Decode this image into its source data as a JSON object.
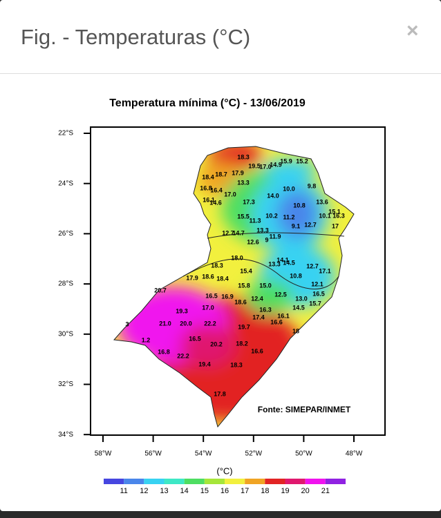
{
  "modal": {
    "title": "Fig. - Temperaturas (°C)",
    "close": "×"
  },
  "map": {
    "title": "Temperatura mínima  (°C) - 13/06/2019",
    "lat_ticks": [
      "22°S",
      "24°S",
      "26°S",
      "28°S",
      "30°S",
      "32°S",
      "34°S"
    ],
    "lon_ticks": [
      "58°W",
      "56°W",
      "54°W",
      "52°W",
      "50°W",
      "48°W"
    ],
    "source": "Fonte: SIMEPAR/INMET",
    "stations": [
      "18.3",
      "18.7",
      "17.9",
      "19.5",
      "17.0",
      "14.9",
      "15.9",
      "15.2",
      "18.4",
      "13.3",
      "16.8",
      "16.4",
      "17.0",
      "14.0",
      "10.0",
      "9.8",
      "16.1",
      "14.6",
      "17.3",
      "10.8",
      "13.6",
      "15.5",
      "10.2",
      "11.2",
      "15.1",
      "11.3",
      "10.1",
      "16.3",
      "9.1",
      "12.7",
      "17",
      "12.7",
      "14.7",
      "13.3",
      "12.6",
      "11.9",
      "9",
      "18.0",
      "14.1",
      "13.3",
      "14.5",
      "12.7",
      "18.3",
      "15.4",
      "10.8",
      "17.1",
      "17.9",
      "18.6",
      "18.4",
      "15.8",
      "15.0",
      "12.1",
      "12.5",
      "16.5",
      "20.7",
      "16.5",
      "16.9",
      "12.4",
      "18.6",
      "13.0",
      "15.7",
      "19.3",
      "17.0",
      "16.3",
      "14.5",
      "17.4",
      "16.1",
      "16.6",
      "21.0",
      "20.0",
      "22.2",
      "19.7",
      "18",
      "16.5",
      "20.2",
      "18.2",
      "16.6",
      "16.8",
      "22.2",
      "19.4",
      "18.3",
      "17.8",
      "1.2",
      "3"
    ]
  },
  "colorbar": {
    "unit": "(°C)",
    "ticks": [
      11,
      12,
      13,
      14,
      15,
      16,
      17,
      18,
      19,
      20,
      21
    ],
    "colors": [
      "#4646e0",
      "#4a86ea",
      "#38d2f2",
      "#3ee8c6",
      "#4ede62",
      "#a6e63a",
      "#f2f03e",
      "#f0a424",
      "#e22424",
      "#e0186e",
      "#f012ee",
      "#9022e2"
    ]
  }
}
